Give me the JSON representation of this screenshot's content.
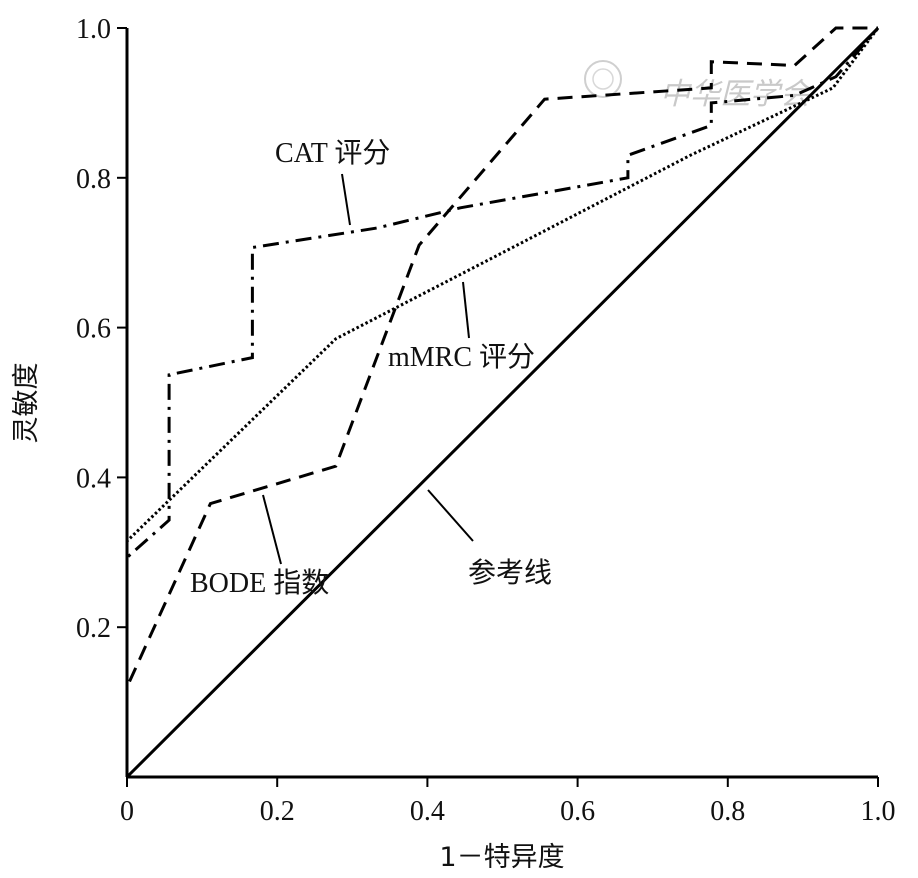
{
  "chart_data": {
    "type": "line",
    "xlabel": "1－特异度",
    "ylabel": "灵敏度",
    "xlim": [
      0,
      1
    ],
    "ylim": [
      0,
      1
    ],
    "x_ticks": [
      "0",
      "0.2",
      "0.4",
      "0.6",
      "0.8",
      "1.0"
    ],
    "y_ticks": [
      "0.2",
      "0.4",
      "0.6",
      "0.8",
      "1.0"
    ],
    "grid": false,
    "legend": "none",
    "watermark": "中华医学会",
    "series": [
      {
        "name": "CAT 评分",
        "style": "dash-dot",
        "x": [
          0,
          0,
          0.056,
          0.056,
          0.167,
          0.167,
          0.333,
          0.444,
          0.556,
          0.667,
          0.667,
          0.778,
          0.778,
          0.889,
          0.944,
          1.0
        ],
        "y": [
          0,
          0.293,
          0.343,
          0.537,
          0.56,
          0.707,
          0.733,
          0.76,
          0.78,
          0.8,
          0.83,
          0.87,
          0.9,
          0.91,
          0.935,
          1.0
        ]
      },
      {
        "name": "mMRC 评分",
        "style": "dotted",
        "x": [
          0,
          0,
          0.278,
          0.5,
          0.75,
          0.94,
          1.0
        ],
        "y": [
          0,
          0.315,
          0.585,
          0.7,
          0.83,
          0.92,
          1.0
        ]
      },
      {
        "name": "BODE 指数",
        "style": "dashed",
        "x": [
          0,
          0,
          0.111,
          0.278,
          0.389,
          0.556,
          0.778,
          0.778,
          0.889,
          0.944,
          1.0
        ],
        "y": [
          0,
          0.12,
          0.365,
          0.415,
          0.71,
          0.905,
          0.92,
          0.955,
          0.95,
          1.0,
          1.0
        ]
      },
      {
        "name": "参考线",
        "style": "solid",
        "x": [
          0,
          1
        ],
        "y": [
          0,
          1
        ]
      }
    ],
    "annotations": [
      {
        "label": "CAT 评分",
        "series": 0,
        "at_x": 0.297,
        "at_y": 0.73
      },
      {
        "label": "mMRC 评分",
        "series": 1,
        "at_x": 0.448,
        "at_y": 0.665
      },
      {
        "label": "BODE 指数",
        "series": 2,
        "at_x": 0.182,
        "at_y": 0.38
      },
      {
        "label": "参考线",
        "series": 3,
        "at_x": 0.398,
        "at_y": 0.4
      }
    ]
  }
}
